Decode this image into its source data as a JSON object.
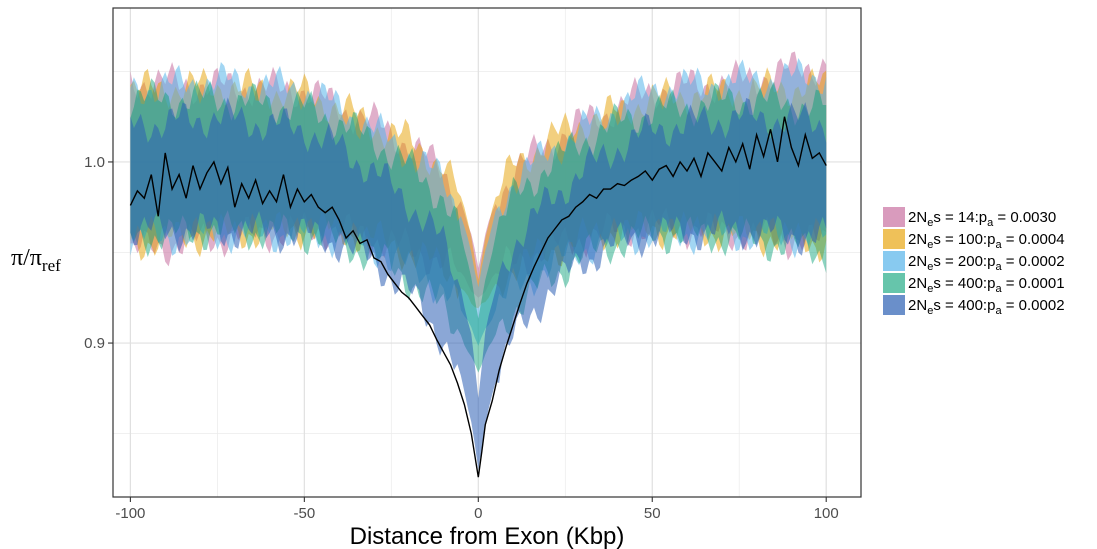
{
  "chart_data": {
    "type": "area",
    "title": "",
    "xlabel": "Distance from Exon (Kbp)",
    "ylabel": "π/π",
    "ylabel_subscript": "ref",
    "xlim": [
      -105,
      110
    ],
    "ylim": [
      0.815,
      1.085
    ],
    "xticks": [
      -100,
      -50,
      0,
      50,
      100
    ],
    "xtick_labels": [
      "-100",
      "-50",
      "0",
      "50",
      "100"
    ],
    "yticks": [
      0.9,
      1.0
    ],
    "ytick_labels": [
      "0.9",
      "1.0"
    ],
    "grid": true,
    "legend_position": "right",
    "series": [
      {
        "legend_prefix": "2N",
        "legend_sub1": "e",
        "legend_mid": "s =   14:p",
        "legend_sub2": "a",
        "legend_suffix": " = 0.0030",
        "color": "#cc79a7",
        "opacity": 0.6,
        "x": [
          -100,
          -75,
          -50,
          -40,
          -30,
          -20,
          -10,
          -5,
          -2,
          0,
          2,
          5,
          10,
          20,
          30,
          40,
          50,
          75,
          100
        ],
        "lower": [
          0.95,
          0.958,
          0.962,
          0.962,
          0.958,
          0.952,
          0.945,
          0.938,
          0.93,
          0.925,
          0.93,
          0.938,
          0.945,
          0.952,
          0.958,
          0.962,
          0.965,
          0.96,
          0.955
        ],
        "upper": [
          1.045,
          1.042,
          1.04,
          1.03,
          1.022,
          1.01,
          0.995,
          0.978,
          0.96,
          0.94,
          0.96,
          0.978,
          0.995,
          1.01,
          1.022,
          1.03,
          1.04,
          1.045,
          1.055
        ]
      },
      {
        "legend_prefix": "2N",
        "legend_sub1": "e",
        "legend_mid": "s = 100:p",
        "legend_sub2": "a",
        "legend_suffix": " = 0.0004",
        "color": "#e69f00",
        "opacity": 0.5,
        "x": [
          -100,
          -75,
          -50,
          -40,
          -30,
          -20,
          -10,
          -5,
          -2,
          0,
          2,
          5,
          10,
          20,
          30,
          40,
          50,
          75,
          100
        ],
        "lower": [
          0.955,
          0.96,
          0.963,
          0.962,
          0.958,
          0.95,
          0.942,
          0.932,
          0.922,
          0.918,
          0.922,
          0.932,
          0.942,
          0.95,
          0.958,
          0.962,
          0.963,
          0.96,
          0.955
        ],
        "upper": [
          1.04,
          1.042,
          1.038,
          1.03,
          1.02,
          1.012,
          0.998,
          0.98,
          0.96,
          0.935,
          0.96,
          0.98,
          0.998,
          1.012,
          1.022,
          1.028,
          1.035,
          1.04,
          1.042
        ]
      },
      {
        "legend_prefix": "2N",
        "legend_sub1": "e",
        "legend_mid": "s = 200:p",
        "legend_sub2": "a",
        "legend_suffix": " = 0.0002",
        "color": "#56b4e9",
        "opacity": 0.55,
        "x": [
          -100,
          -75,
          -50,
          -40,
          -30,
          -20,
          -10,
          -5,
          -2,
          0,
          2,
          5,
          10,
          20,
          30,
          40,
          50,
          75,
          100
        ],
        "lower": [
          0.958,
          0.96,
          0.96,
          0.958,
          0.952,
          0.942,
          0.93,
          0.918,
          0.908,
          0.9,
          0.908,
          0.918,
          0.93,
          0.942,
          0.952,
          0.958,
          0.96,
          0.96,
          0.958
        ],
        "upper": [
          1.04,
          1.045,
          1.04,
          1.03,
          1.018,
          1.005,
          0.99,
          0.972,
          0.95,
          0.93,
          0.95,
          0.972,
          0.99,
          1.005,
          1.018,
          1.03,
          1.04,
          1.045,
          1.048
        ]
      },
      {
        "legend_prefix": "2N",
        "legend_sub1": "e",
        "legend_mid": "s = 400:p",
        "legend_sub2": "a",
        "legend_suffix": " = 0.0001",
        "color": "#009e73",
        "opacity": 0.45,
        "x": [
          -100,
          -75,
          -50,
          -40,
          -30,
          -20,
          -10,
          -5,
          -2,
          0,
          2,
          5,
          10,
          20,
          30,
          40,
          50,
          75,
          100
        ],
        "lower": [
          0.958,
          0.962,
          0.96,
          0.955,
          0.948,
          0.935,
          0.918,
          0.905,
          0.892,
          0.884,
          0.892,
          0.905,
          0.918,
          0.935,
          0.948,
          0.955,
          0.96,
          0.958,
          0.95
        ],
        "upper": [
          1.035,
          1.035,
          1.03,
          1.022,
          1.012,
          0.998,
          0.98,
          0.96,
          0.935,
          0.915,
          0.935,
          0.96,
          0.98,
          0.998,
          1.012,
          1.022,
          1.028,
          1.035,
          1.03
        ]
      },
      {
        "legend_prefix": "2N",
        "legend_sub1": "e",
        "legend_mid": "s = 400:p",
        "legend_sub2": "a",
        "legend_suffix": " = 0.0002",
        "color": "#2b5fb4",
        "opacity": 0.55,
        "x": [
          -100,
          -75,
          -50,
          -40,
          -30,
          -20,
          -10,
          -5,
          -2,
          0,
          2,
          5,
          10,
          20,
          30,
          40,
          50,
          75,
          100
        ],
        "lower": [
          0.962,
          0.962,
          0.96,
          0.955,
          0.945,
          0.928,
          0.902,
          0.88,
          0.856,
          0.83,
          0.856,
          0.88,
          0.902,
          0.928,
          0.945,
          0.955,
          0.96,
          0.962,
          0.958
        ],
        "upper": [
          1.02,
          1.025,
          1.018,
          1.008,
          0.995,
          0.978,
          0.955,
          0.93,
          0.905,
          0.87,
          0.905,
          0.93,
          0.955,
          0.978,
          0.995,
          1.008,
          1.018,
          1.025,
          1.022
        ]
      }
    ],
    "observed_line": {
      "color": "#000000",
      "x": [
        -100,
        -98,
        -96,
        -94,
        -92,
        -90,
        -88,
        -86,
        -84,
        -82,
        -80,
        -78,
        -76,
        -74,
        -72,
        -70,
        -68,
        -66,
        -64,
        -62,
        -60,
        -58,
        -56,
        -54,
        -52,
        -50,
        -48,
        -46,
        -44,
        -42,
        -40,
        -38,
        -36,
        -34,
        -32,
        -30,
        -28,
        -26,
        -24,
        -22,
        -20,
        -18,
        -16,
        -14,
        -12,
        -10,
        -8,
        -6,
        -4,
        -2,
        -1,
        0,
        1,
        2,
        4,
        6,
        8,
        10,
        12,
        14,
        16,
        18,
        20,
        22,
        24,
        26,
        28,
        30,
        32,
        34,
        36,
        38,
        40,
        42,
        44,
        46,
        48,
        50,
        52,
        54,
        56,
        58,
        60,
        62,
        64,
        66,
        68,
        70,
        72,
        74,
        76,
        78,
        80,
        82,
        84,
        86,
        88,
        90,
        92,
        94,
        96,
        98,
        100
      ],
      "y": [
        0.976,
        0.984,
        0.98,
        0.993,
        0.97,
        1.005,
        0.985,
        0.993,
        0.98,
        0.998,
        0.985,
        0.994,
        1.0,
        0.988,
        0.997,
        0.975,
        0.988,
        0.98,
        0.99,
        0.977,
        0.984,
        0.978,
        0.993,
        0.975,
        0.985,
        0.978,
        0.982,
        0.975,
        0.972,
        0.975,
        0.968,
        0.958,
        0.962,
        0.955,
        0.957,
        0.947,
        0.945,
        0.938,
        0.933,
        0.928,
        0.925,
        0.92,
        0.915,
        0.91,
        0.902,
        0.895,
        0.888,
        0.878,
        0.866,
        0.85,
        0.838,
        0.826,
        0.84,
        0.855,
        0.868,
        0.885,
        0.898,
        0.91,
        0.922,
        0.933,
        0.942,
        0.95,
        0.958,
        0.963,
        0.968,
        0.97,
        0.975,
        0.978,
        0.982,
        0.98,
        0.985,
        0.985,
        0.988,
        0.987,
        0.99,
        0.992,
        0.995,
        0.99,
        0.996,
        0.998,
        0.992,
        1.0,
        0.995,
        1.002,
        0.992,
        1.005,
        1.0,
        0.995,
        1.008,
        1.0,
        1.01,
        0.996,
        1.015,
        1.003,
        1.018,
        1.0,
        1.025,
        1.008,
        0.998,
        1.015,
        1.002,
        1.005,
        0.998
      ]
    }
  }
}
